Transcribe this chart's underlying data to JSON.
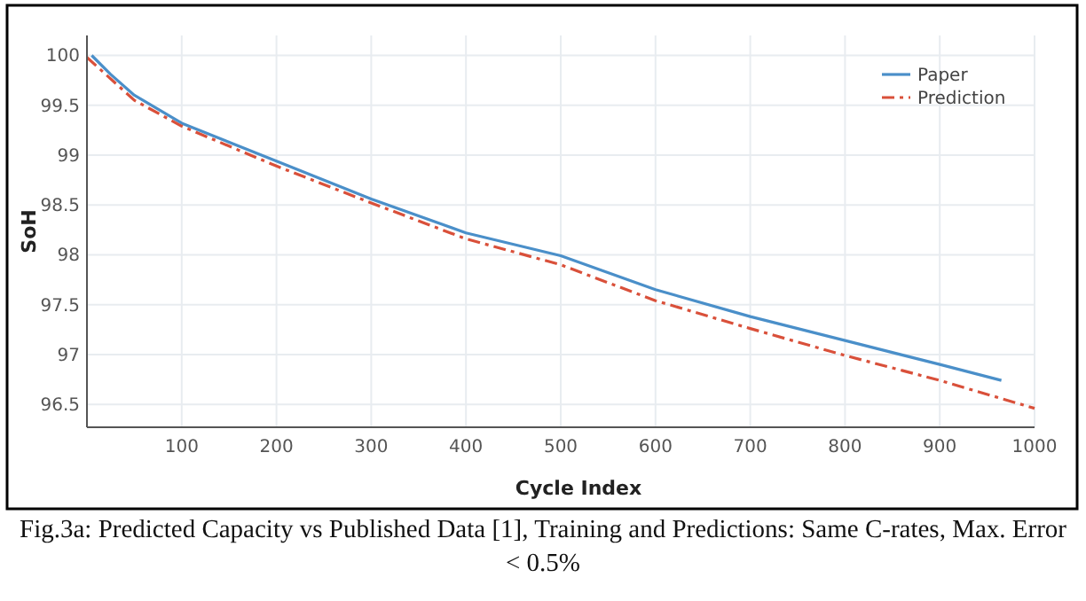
{
  "chart_data": {
    "type": "line",
    "xlabel": "Cycle Index",
    "ylabel": "SoH",
    "xlim": [
      0,
      1000
    ],
    "ylim": [
      96.27,
      100.2
    ],
    "xticks": [
      100,
      200,
      300,
      400,
      500,
      600,
      700,
      800,
      900,
      1000
    ],
    "yticks": [
      96.5,
      97,
      97.5,
      98,
      98.5,
      99,
      99.5,
      100
    ],
    "grid": true,
    "legend": "top right",
    "annotations": [
      "Fig.3a: Predicted Capacity vs Published Data [1], Training and Predictions: Same C-rates,  Max. Error < 0.5%"
    ],
    "series": [
      {
        "name": "Paper",
        "color": "#4a8fc9",
        "line_style": "solid",
        "x": [
          5,
          25,
          50,
          100,
          200,
          300,
          400,
          500,
          600,
          700,
          800,
          900,
          965
        ],
        "values": [
          100,
          99.81,
          99.6,
          99.32,
          98.94,
          98.56,
          98.22,
          97.99,
          97.65,
          97.38,
          97.14,
          96.9,
          96.74
        ]
      },
      {
        "name": "Prediction",
        "color": "#d9503a",
        "line_style": "dashed",
        "x": [
          0,
          50,
          100,
          200,
          300,
          400,
          500,
          600,
          700,
          800,
          900,
          1000
        ],
        "values": [
          99.98,
          99.55,
          99.29,
          98.89,
          98.52,
          98.16,
          97.9,
          97.54,
          97.26,
          96.99,
          96.74,
          96.46
        ]
      }
    ]
  }
}
